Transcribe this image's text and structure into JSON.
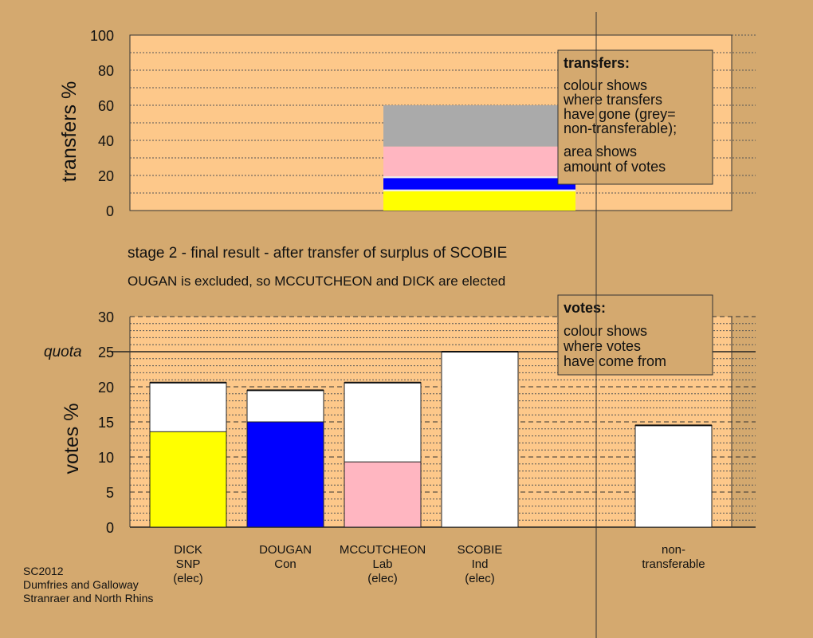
{
  "chart_data": [
    {
      "type": "bar",
      "stacked": true,
      "ylabel": "transfers %",
      "ylim": [
        0,
        100
      ],
      "yticks": [
        "0",
        "20",
        "40",
        "60",
        "80",
        "100"
      ],
      "bars": [
        {
          "segments": [
            {
              "color": "#ffff00",
              "value": 11
            },
            {
              "color": "#f0f0f0",
              "value": 1
            },
            {
              "color": "#0000ff",
              "value": 6.5
            },
            {
              "color": "#f0f0f0",
              "value": 1
            },
            {
              "color": "#ffb6c1",
              "value": 17
            },
            {
              "color": "#aaaaaa",
              "value": 23.5
            }
          ]
        }
      ],
      "legend": {
        "title": "transfers:",
        "lines": [
          "colour shows",
          "where transfers",
          "have gone (grey=",
          "non-transferable);",
          "area shows",
          "amount of votes"
        ]
      }
    },
    {
      "type": "bar",
      "stacked": true,
      "ylabel": "votes %",
      "ylim": [
        0,
        30
      ],
      "yticks": [
        "0",
        "5",
        "10",
        "15",
        "20",
        "25",
        "30"
      ],
      "quota": {
        "label": "quota",
        "value": 25
      },
      "categories": [
        {
          "lines": [
            "DICK",
            "SNP",
            "(elec)"
          ],
          "base": 13.6,
          "base_color": "#ffff00",
          "total": 20.6
        },
        {
          "lines": [
            "DOUGAN",
            "Con"
          ],
          "base": 15.0,
          "base_color": "#0000ff",
          "total": 19.5
        },
        {
          "lines": [
            "MCCUTCHEON",
            "Lab",
            "(elec)"
          ],
          "base": 9.3,
          "base_color": "#ffb6c1",
          "total": 20.6
        },
        {
          "lines": [
            "SCOBIE",
            "Ind",
            "(elec)"
          ],
          "base": 0,
          "base_color": "#ffffff",
          "total": 25.0
        },
        {
          "lines": [
            "non-",
            "transferable"
          ],
          "base": 0,
          "base_color": "#ffffff",
          "total": 14.5
        }
      ],
      "legend": {
        "title": "votes:",
        "lines": [
          "colour shows",
          "where votes",
          "have come from"
        ]
      }
    }
  ],
  "captions": {
    "stage": "stage 2 - final result - after transfer of surplus of SCOBIE",
    "note": "OUGAN is excluded, so MCCUTCHEON and DICK are elected"
  },
  "footer": [
    "SC2012",
    "Dumfries and Galloway",
    "Stranraer and North Rhins"
  ],
  "colors": {
    "background": "#d4a96f",
    "plot_bg": "#fdc88a",
    "transferred": "#ffffff"
  }
}
